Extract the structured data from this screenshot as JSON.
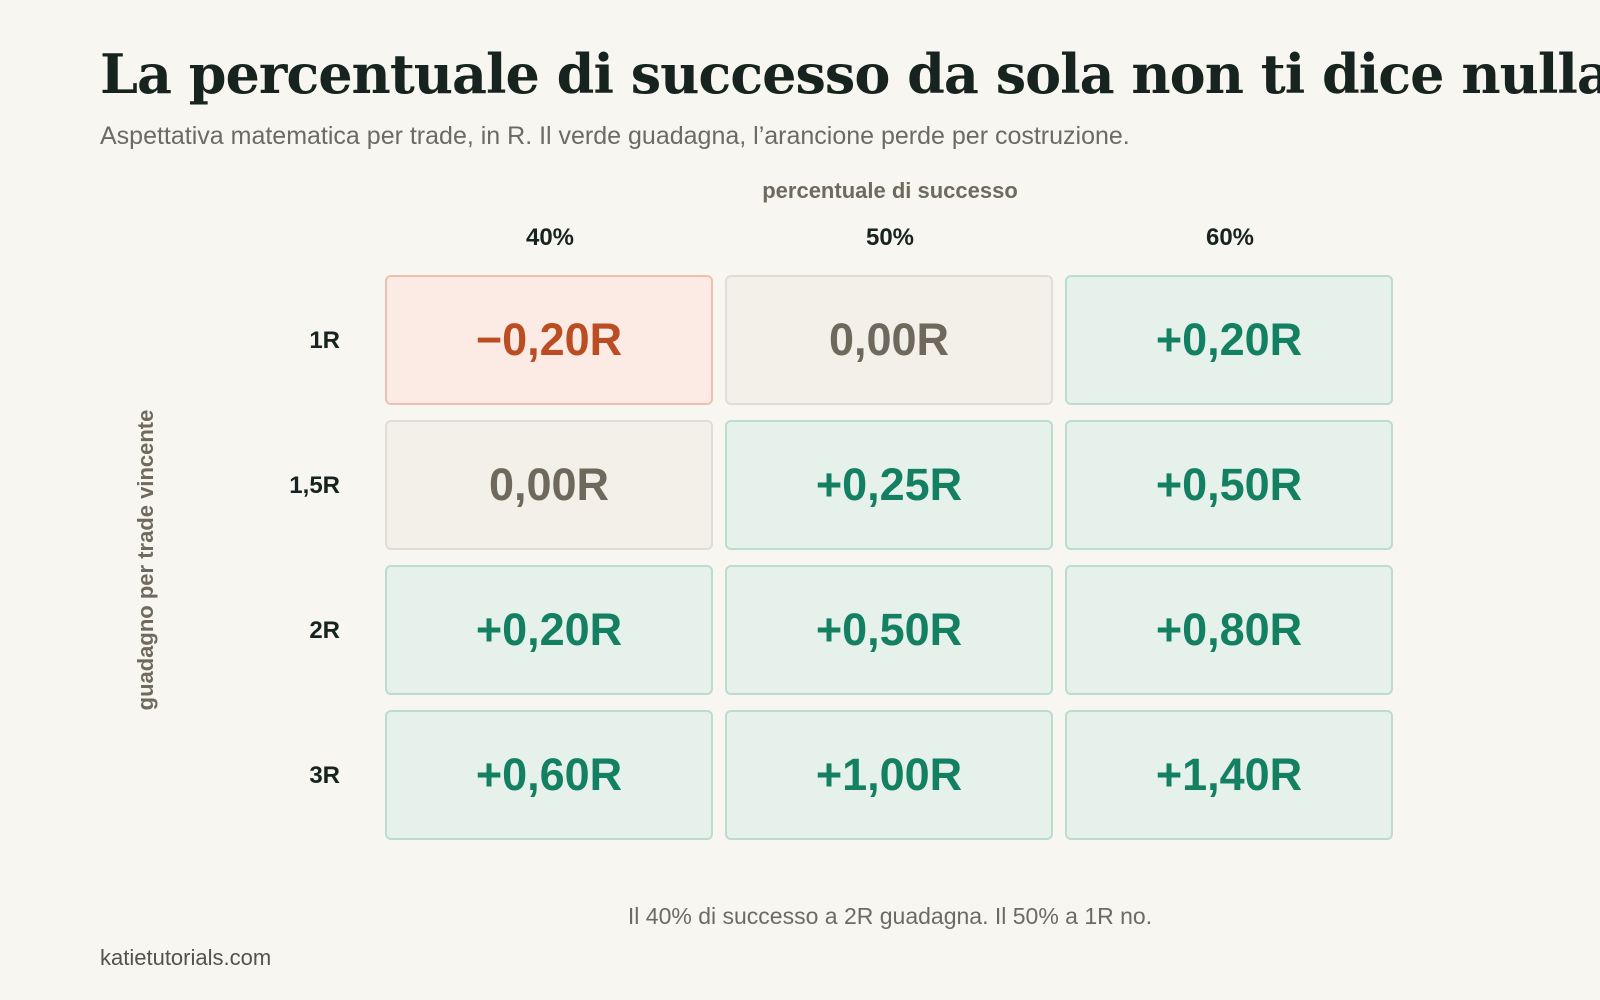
{
  "header": {
    "title": "La percentuale di successo da sola non ti dice nulla",
    "subtitle": "Aspettativa matematica per trade, in R. Il verde guadagna, l’arancione perde per costruzione."
  },
  "footer": {
    "note": "Il 40% di successo a 2R guadagna. Il 50% a 1R no.",
    "source": "katietutorials.com"
  },
  "colors": {
    "positive": "#148062",
    "zero": "#6e695c",
    "negative": "#bb4d22"
  },
  "chart_data": {
    "type": "heatmap",
    "xlabel": "percentuale di successo",
    "ylabel": "guadagno per trade vincente",
    "x_categories": [
      "40%",
      "50%",
      "60%"
    ],
    "y_categories": [
      "1R",
      "1,5R",
      "2R",
      "3R"
    ],
    "values": [
      [
        -0.2,
        0.0,
        0.2
      ],
      [
        0.0,
        0.25,
        0.5
      ],
      [
        0.2,
        0.5,
        0.8
      ],
      [
        0.6,
        1.0,
        1.4
      ]
    ],
    "cell_labels": [
      [
        "−0,20R",
        "0,00R",
        "+0,20R"
      ],
      [
        "0,00R",
        "+0,25R",
        "+0,50R"
      ],
      [
        "+0,20R",
        "+0,50R",
        "+0,80R"
      ],
      [
        "+0,60R",
        "+1,00R",
        "+1,40R"
      ]
    ],
    "unit": "R"
  }
}
